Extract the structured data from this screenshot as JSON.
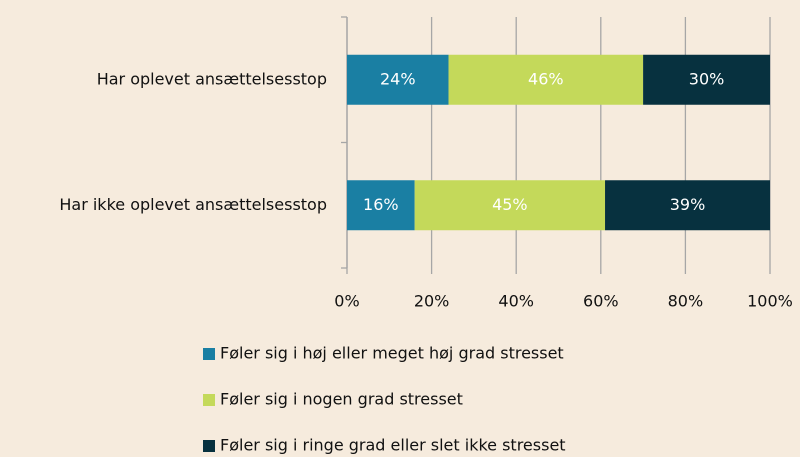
{
  "chart_data": {
    "type": "stacked_barh",
    "categories": [
      "Har oplevet ansættelsesstop",
      "Har ikke oplevet ansættelsesstop"
    ],
    "series": [
      {
        "name": "Føler sig i høj eller meget høj grad stresset",
        "color": "#1a7fa3",
        "values": [
          24,
          16
        ],
        "value_labels": [
          "24%",
          "16%"
        ]
      },
      {
        "name": "Føler sig i nogen grad stresset",
        "color": "#c4d95a",
        "values": [
          46,
          45
        ],
        "value_labels": [
          "46%",
          "45%"
        ]
      },
      {
        "name": "Føler sig i ringe grad eller slet ikke stresset",
        "color": "#07313f",
        "values": [
          30,
          39
        ],
        "value_labels": [
          "30%",
          "39%"
        ]
      }
    ],
    "xlim": [
      0,
      100
    ],
    "xticks": [
      {
        "value": 0,
        "label": "0%"
      },
      {
        "value": 20,
        "label": "20%"
      },
      {
        "value": 40,
        "label": "40%"
      },
      {
        "value": 60,
        "label": "60%"
      },
      {
        "value": 80,
        "label": "80%"
      },
      {
        "value": 100,
        "label": "100%"
      }
    ],
    "grid": true,
    "legend": "bottom"
  }
}
